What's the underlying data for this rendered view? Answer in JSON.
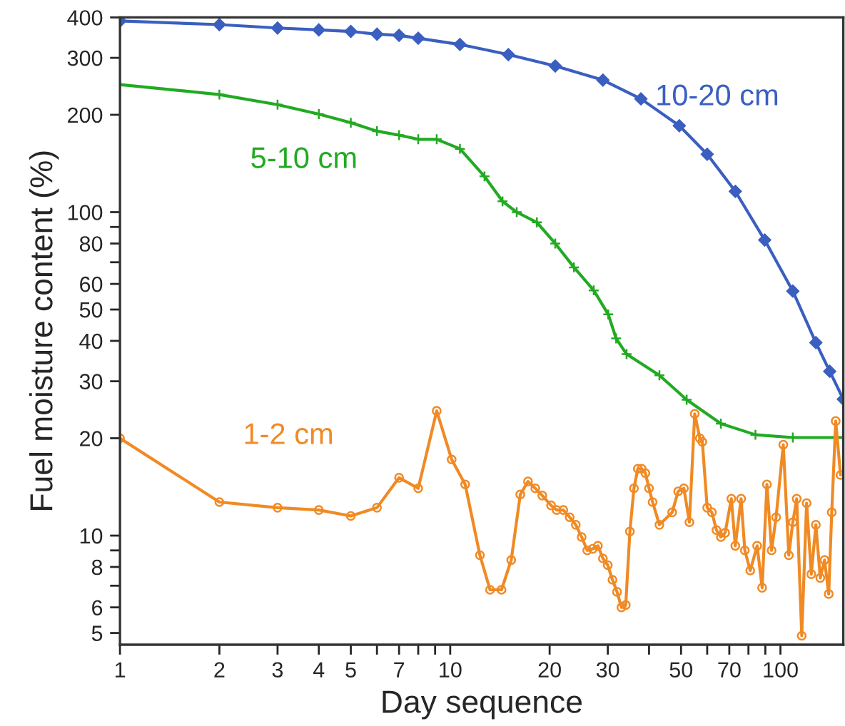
{
  "chart_data": {
    "type": "line",
    "xlabel": "Day sequence",
    "ylabel": "Fuel moisture content (%)",
    "log": "xy",
    "xlim": [
      1,
      155
    ],
    "ylim": [
      4.6,
      400
    ],
    "xticks": [
      1,
      2,
      3,
      4,
      5,
      {
        "value": 6,
        "label": null
      },
      7,
      {
        "value": 8,
        "label": null
      },
      {
        "value": 9,
        "label": null
      },
      10,
      20,
      30,
      {
        "value": 40,
        "label": null
      },
      50,
      {
        "value": 60,
        "label": null
      },
      70,
      {
        "value": 80,
        "label": null
      },
      {
        "value": 90,
        "label": null
      },
      100
    ],
    "yticks": [
      5,
      6,
      {
        "value": 7,
        "label": null
      },
      8,
      {
        "value": 9,
        "label": null
      },
      10,
      20,
      30,
      40,
      50,
      60,
      {
        "value": 70,
        "label": null
      },
      80,
      {
        "value": 90,
        "label": null
      },
      100,
      200,
      300,
      400
    ],
    "grid": false,
    "legend": false,
    "series": [
      {
        "name": "10-20 cm",
        "color": "#3a5fc0",
        "marker": "diamond",
        "x": [
          1,
          2,
          3,
          4,
          5,
          6,
          7,
          8,
          10.7,
          15,
          20.8,
          29,
          37.8,
          49.4,
          60,
          73,
          89.6,
          109,
          128,
          141,
          155
        ],
        "values": [
          390,
          380,
          371,
          366,
          362,
          355,
          352,
          345,
          330,
          307,
          283,
          256,
          224,
          185,
          151,
          116,
          82,
          57,
          39.5,
          32.2,
          26.4
        ]
      },
      {
        "name": "5-10 cm",
        "color": "#22aa22",
        "marker": "cross",
        "x": [
          1,
          2,
          3,
          4,
          5,
          6,
          7,
          8,
          9.1,
          10.7,
          12.7,
          14.4,
          15.9,
          18.3,
          20.8,
          23.7,
          27.2,
          30.1,
          31.8,
          34.2,
          43,
          52,
          66,
          84,
          109,
          155
        ],
        "values": [
          248,
          231,
          215,
          201,
          189,
          178,
          173,
          168,
          168,
          157,
          129,
          108,
          100,
          93,
          80,
          67.5,
          57.3,
          48.3,
          40.7,
          36.4,
          31.3,
          26.3,
          22.2,
          20.5,
          20.1,
          20.1
        ]
      },
      {
        "name": "1-2 cm",
        "color": "#f08a24",
        "marker": "circle",
        "x": [
          1,
          2,
          3,
          4,
          5,
          6,
          7,
          8,
          9.1,
          10.1,
          11.1,
          12.3,
          13.2,
          14.3,
          15.3,
          16.3,
          17.2,
          18.1,
          19,
          20.2,
          21,
          22,
          23,
          24,
          25,
          26,
          27,
          28,
          29,
          30,
          31,
          32,
          33,
          34,
          35,
          36,
          37,
          38,
          39,
          40,
          41,
          43,
          47,
          49,
          51,
          53,
          55,
          57,
          58,
          60,
          62,
          64,
          66,
          68,
          71,
          73,
          76,
          78,
          81,
          85,
          88,
          91,
          94,
          97,
          102,
          106,
          109,
          112,
          116,
          120,
          124,
          128,
          132,
          136,
          140,
          143,
          147,
          152
        ],
        "values": [
          20,
          12.7,
          12.2,
          12.0,
          11.5,
          12.2,
          15.1,
          14.0,
          24.3,
          17.2,
          14.4,
          8.7,
          6.8,
          6.8,
          8.4,
          13.4,
          14.7,
          14.0,
          13.3,
          12.4,
          12.0,
          12.0,
          11.4,
          10.8,
          9.9,
          9.0,
          9.1,
          9.3,
          8.5,
          8.1,
          7.3,
          6.7,
          6.0,
          6.1,
          10.3,
          14.0,
          16.1,
          16.1,
          15.6,
          14.0,
          12.7,
          10.8,
          11.8,
          13.7,
          14.0,
          11.0,
          23.8,
          20,
          19.5,
          12.2,
          11.8,
          10.4,
          9.9,
          10.2,
          13.0,
          9.3,
          13.0,
          9.0,
          7.8,
          9.3,
          6.9,
          14.4,
          9.0,
          11.4,
          19.1,
          8.7,
          11.0,
          13.0,
          4.9,
          12.6,
          7.6,
          10.8,
          7.4,
          8.4,
          6.6,
          11.8,
          22.6,
          15.4
        ]
      }
    ]
  }
}
